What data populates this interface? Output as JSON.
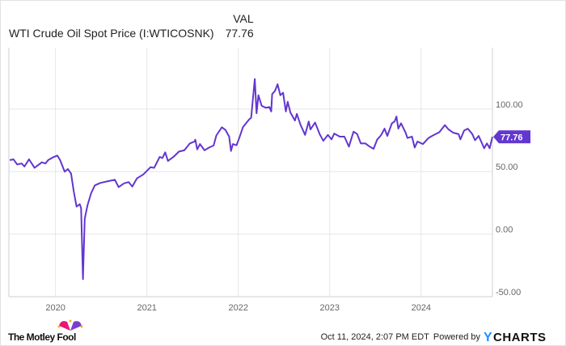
{
  "header": {
    "series_name": "WTI Crude Oil Spot Price (I:WTICOSNK)",
    "value_label": "VAL",
    "value": "77.76"
  },
  "footer": {
    "brand": "The Motley Fool",
    "timestamp": "Oct 11, 2024, 2:07 PM EDT",
    "powered_by": "Powered by",
    "provider": "YCHARTS"
  },
  "colors": {
    "line": "#6236d0",
    "grid": "#e6e6e6",
    "axis_text": "#666666",
    "ycharts": "#1e90ff"
  },
  "chart_data": {
    "type": "line",
    "title": "WTI Crude Oil Spot Price (I:WTICOSNK)",
    "xlabel": "",
    "ylabel": "",
    "xlim": [
      2019.49,
      2024.78
    ],
    "ylim": [
      -50,
      149
    ],
    "grid": true,
    "legend": "top-left",
    "x_ticks": [
      {
        "value": 2020,
        "label": "2020"
      },
      {
        "value": 2021,
        "label": "2021"
      },
      {
        "value": 2022,
        "label": "2022"
      },
      {
        "value": 2023,
        "label": "2023"
      },
      {
        "value": 2024,
        "label": "2024"
      }
    ],
    "y_ticks": [
      {
        "value": 100,
        "label": "100.00"
      },
      {
        "value": 50,
        "label": "50.00"
      },
      {
        "value": 0,
        "label": "0.00"
      },
      {
        "value": -50,
        "label": "-50.00"
      }
    ],
    "last_value_label": "77.76",
    "series": [
      {
        "name": "WTI Crude Oil Spot Price",
        "points": [
          [
            2019.5,
            59.2
          ],
          [
            2019.54,
            59.8
          ],
          [
            2019.58,
            55.7
          ],
          [
            2019.63,
            56.5
          ],
          [
            2019.66,
            54
          ],
          [
            2019.71,
            59.8
          ],
          [
            2019.77,
            53
          ],
          [
            2019.85,
            57.4
          ],
          [
            2019.89,
            56.5
          ],
          [
            2019.92,
            59.2
          ],
          [
            2019.97,
            61.3
          ],
          [
            2020.02,
            62.8
          ],
          [
            2020.05,
            59.2
          ],
          [
            2020.1,
            49.9
          ],
          [
            2020.135,
            52
          ],
          [
            2020.17,
            48.4
          ],
          [
            2020.2,
            33.8
          ],
          [
            2020.23,
            22
          ],
          [
            2020.265,
            24
          ],
          [
            2020.28,
            20.8
          ],
          [
            2020.3,
            -36
          ],
          [
            2020.32,
            12.3
          ],
          [
            2020.35,
            23
          ],
          [
            2020.39,
            32.7
          ],
          [
            2020.43,
            39
          ],
          [
            2020.49,
            40.9
          ],
          [
            2020.58,
            42.4
          ],
          [
            2020.65,
            43.4
          ],
          [
            2020.69,
            37.6
          ],
          [
            2020.75,
            40.6
          ],
          [
            2020.8,
            41.6
          ],
          [
            2020.84,
            38
          ],
          [
            2020.89,
            44.5
          ],
          [
            2020.96,
            47.7
          ],
          [
            2021.04,
            53.5
          ],
          [
            2021.08,
            53
          ],
          [
            2021.14,
            61.7
          ],
          [
            2021.17,
            60.8
          ],
          [
            2021.2,
            65.4
          ],
          [
            2021.23,
            58.5
          ],
          [
            2021.29,
            61.7
          ],
          [
            2021.35,
            66
          ],
          [
            2021.41,
            67
          ],
          [
            2021.47,
            72.5
          ],
          [
            2021.52,
            74
          ],
          [
            2021.53,
            75.5
          ],
          [
            2021.55,
            67.7
          ],
          [
            2021.58,
            72
          ],
          [
            2021.63,
            67
          ],
          [
            2021.68,
            69.2
          ],
          [
            2021.73,
            70.8
          ],
          [
            2021.76,
            78.9
          ],
          [
            2021.82,
            85.4
          ],
          [
            2021.86,
            83.2
          ],
          [
            2021.9,
            77.9
          ],
          [
            2021.92,
            66.5
          ],
          [
            2021.94,
            72
          ],
          [
            2021.98,
            71
          ],
          [
            2022.01,
            76.8
          ],
          [
            2022.05,
            85.4
          ],
          [
            2022.12,
            91.8
          ],
          [
            2022.14,
            92.9
          ],
          [
            2022.18,
            124
          ],
          [
            2022.2,
            96.6
          ],
          [
            2022.22,
            111
          ],
          [
            2022.255,
            102.6
          ],
          [
            2022.3,
            101
          ],
          [
            2022.34,
            101.6
          ],
          [
            2022.36,
            98
          ],
          [
            2022.37,
            112
          ],
          [
            2022.4,
            114.4
          ],
          [
            2022.43,
            119.8
          ],
          [
            2022.46,
            111
          ],
          [
            2022.49,
            113
          ],
          [
            2022.52,
            98
          ],
          [
            2022.54,
            105.8
          ],
          [
            2022.57,
            97.2
          ],
          [
            2022.62,
            90.8
          ],
          [
            2022.64,
            96.1
          ],
          [
            2022.68,
            87.5
          ],
          [
            2022.73,
            79.3
          ],
          [
            2022.77,
            90
          ],
          [
            2022.79,
            83.7
          ],
          [
            2022.84,
            89.2
          ],
          [
            2022.89,
            80
          ],
          [
            2022.93,
            74.6
          ],
          [
            2022.98,
            79.3
          ],
          [
            2023.02,
            75.7
          ],
          [
            2023.05,
            80.4
          ],
          [
            2023.11,
            77.9
          ],
          [
            2023.16,
            77.9
          ],
          [
            2023.21,
            69.9
          ],
          [
            2023.26,
            81.9
          ],
          [
            2023.3,
            80
          ],
          [
            2023.34,
            72.5
          ],
          [
            2023.39,
            72.5
          ],
          [
            2023.43,
            70.3
          ],
          [
            2023.48,
            68.2
          ],
          [
            2023.52,
            75.7
          ],
          [
            2023.56,
            78.9
          ],
          [
            2023.6,
            84.3
          ],
          [
            2023.63,
            78.5
          ],
          [
            2023.68,
            88.6
          ],
          [
            2023.71,
            90
          ],
          [
            2023.73,
            94
          ],
          [
            2023.75,
            84.3
          ],
          [
            2023.78,
            88.6
          ],
          [
            2023.83,
            81.1
          ],
          [
            2023.85,
            76.8
          ],
          [
            2023.9,
            77.9
          ],
          [
            2023.93,
            69.2
          ],
          [
            2023.96,
            74
          ],
          [
            2024.02,
            72
          ],
          [
            2024.08,
            76.8
          ],
          [
            2024.13,
            78.9
          ],
          [
            2024.2,
            81.5
          ],
          [
            2024.26,
            87.1
          ],
          [
            2024.3,
            83.7
          ],
          [
            2024.35,
            81.1
          ],
          [
            2024.41,
            79.9
          ],
          [
            2024.43,
            75.7
          ],
          [
            2024.47,
            82.8
          ],
          [
            2024.51,
            84.3
          ],
          [
            2024.56,
            80
          ],
          [
            2024.59,
            75
          ],
          [
            2024.63,
            78.5
          ],
          [
            2024.69,
            68.6
          ],
          [
            2024.72,
            72.5
          ],
          [
            2024.75,
            68.6
          ],
          [
            2024.78,
            77.76
          ]
        ]
      }
    ]
  }
}
